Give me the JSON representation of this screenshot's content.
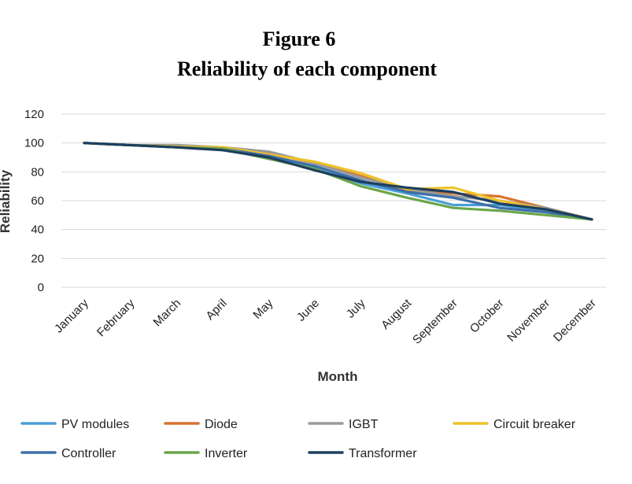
{
  "chart_data": {
    "type": "line",
    "title": "Figure 6",
    "subtitle": "Reliability of each component",
    "xlabel": "Month",
    "ylabel": "Reliability",
    "ylim": [
      0,
      120
    ],
    "yticks": [
      "0",
      "20",
      "40",
      "60",
      "80",
      "100",
      "120"
    ],
    "grid": true,
    "legend_position": "bottom",
    "categories": [
      "January",
      "February",
      "March",
      "April",
      "May",
      "June",
      "July",
      "August",
      "September",
      "October",
      "November",
      "December"
    ],
    "series": [
      {
        "name": "PV modules",
        "color": "#4a9fd6",
        "values": [
          100,
          98.5,
          97,
          96,
          90,
          83,
          72,
          65,
          57,
          57,
          53,
          47
        ]
      },
      {
        "name": "Diode",
        "color": "#d9742e",
        "values": [
          100,
          98.5,
          98,
          97,
          93,
          86,
          77,
          67,
          65,
          63,
          55,
          47
        ]
      },
      {
        "name": "IGBT",
        "color": "#9a9a9a",
        "values": [
          100,
          98.5,
          98.5,
          97,
          94,
          86,
          76,
          68,
          63,
          60,
          55,
          47
        ]
      },
      {
        "name": "Circuit breaker",
        "color": "#efc229",
        "values": [
          100,
          98.5,
          97.5,
          97,
          92,
          87,
          79,
          68,
          69,
          60,
          54,
          47
        ]
      },
      {
        "name": "Controller",
        "color": "#3e6fa8",
        "values": [
          100,
          98.5,
          97,
          96,
          91,
          84,
          74,
          66,
          62,
          55,
          52,
          47
        ]
      },
      {
        "name": "Inverter",
        "color": "#6aa64a",
        "values": [
          100,
          98.5,
          97,
          96,
          89,
          82,
          70,
          62,
          55,
          53,
          50,
          47
        ]
      },
      {
        "name": "Transformer",
        "color": "#1d3f5e",
        "values": [
          100,
          98.5,
          97,
          95,
          90,
          81,
          73,
          69,
          66,
          58,
          54,
          47
        ]
      }
    ]
  }
}
